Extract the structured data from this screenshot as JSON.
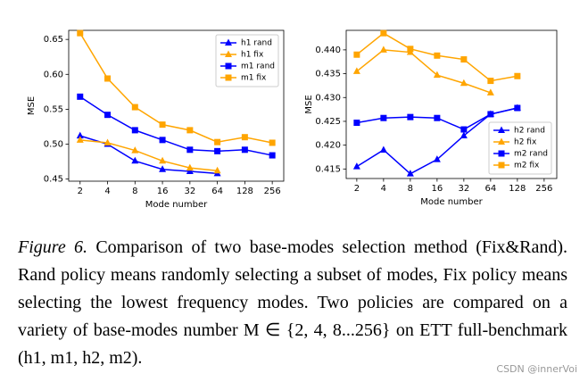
{
  "chart_data": [
    {
      "type": "line",
      "xscale": "log2",
      "xlabel": "Mode number",
      "ylabel": "MSE",
      "x": [
        2,
        4,
        8,
        16,
        32,
        64,
        128,
        256
      ],
      "xlim": [
        1.5,
        342
      ],
      "xticks": [
        2,
        4,
        8,
        16,
        32,
        64,
        128,
        256
      ],
      "ylim": [
        0.447,
        0.663
      ],
      "yticks": [
        0.45,
        {
          "value": 0.5,
          "label": "0.50"
        },
        0.55,
        {
          "value": 0.6,
          "label": "0.60"
        },
        0.65
      ],
      "legend": "upper right",
      "series": [
        {
          "name": "h1 rand",
          "color": "#0000ff",
          "marker": "triangle",
          "values": [
            0.512,
            0.5,
            0.476,
            0.464,
            0.461,
            0.458,
            null,
            null
          ]
        },
        {
          "name": "h1 fix",
          "color": "#ffa500",
          "marker": "triangle",
          "values": [
            0.506,
            0.502,
            0.491,
            0.476,
            0.466,
            0.462,
            null,
            null
          ]
        },
        {
          "name": "m1 rand",
          "color": "#0000ff",
          "marker": "square",
          "values": [
            0.568,
            0.542,
            0.52,
            0.506,
            0.492,
            0.49,
            0.492,
            0.484
          ]
        },
        {
          "name": "m1 fix",
          "color": "#ffa500",
          "marker": "square",
          "values": [
            0.659,
            0.594,
            0.553,
            0.528,
            0.52,
            0.503,
            0.51,
            0.502
          ]
        }
      ]
    },
    {
      "type": "line",
      "xscale": "log2",
      "xlabel": "Mode number",
      "ylabel": "MSE",
      "x": [
        2,
        4,
        8,
        16,
        32,
        64,
        128
      ],
      "xlim": [
        1.52,
        355
      ],
      "xticks": [
        2,
        4,
        8,
        16,
        32,
        64,
        128,
        256
      ],
      "ylim": [
        0.413,
        0.4441
      ],
      "yticks": [
        0.415,
        {
          "value": 0.42,
          "label": "0.420"
        },
        0.425,
        {
          "value": 0.43,
          "label": "0.430"
        },
        0.435,
        {
          "value": 0.44,
          "label": "0.440"
        }
      ],
      "legend": "lower right",
      "series": [
        {
          "name": "h2 rand",
          "color": "#0000ff",
          "marker": "triangle",
          "values": [
            0.4155,
            0.419,
            0.414,
            0.417,
            0.422,
            0.4265,
            0.4278
          ]
        },
        {
          "name": "h2 fix",
          "color": "#ffa500",
          "marker": "triangle",
          "values": [
            0.4355,
            0.44,
            0.4395,
            0.4347,
            0.433,
            0.431,
            null
          ]
        },
        {
          "name": "m2 rand",
          "color": "#0000ff",
          "marker": "square",
          "values": [
            0.4247,
            0.4257,
            0.4259,
            0.4257,
            0.4233,
            0.4265,
            0.4278
          ]
        },
        {
          "name": "m2 fix",
          "color": "#ffa500",
          "marker": "square",
          "values": [
            0.439,
            0.4435,
            0.4402,
            0.4388,
            0.438,
            0.4335,
            0.4345
          ]
        }
      ]
    }
  ],
  "caption": {
    "label": "Figure 6.",
    "text": "Comparison of two base-modes selection method (Fix&Rand). Rand policy means randomly selecting a subset of modes, Fix policy means selecting the lowest frequency modes. Two policies are compared on a variety of base-modes number M ∈ {2, 4, 8...256} on ETT full-benchmark (h1, m1, h2, m2)."
  },
  "watermark": "CSDN @innerVoi"
}
